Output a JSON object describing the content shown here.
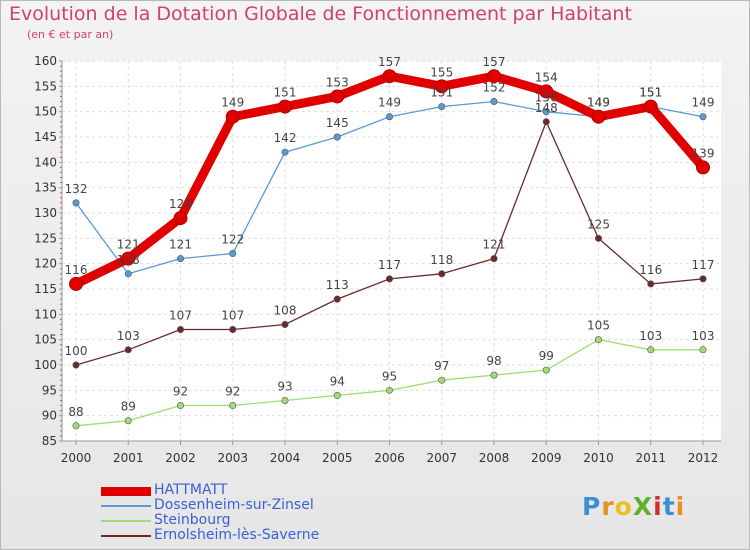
{
  "header": {
    "title": "Evolution de la Dotation Globale de Fonctionnement par Habitant",
    "subtitle": "(en € et par an)"
  },
  "logo": {
    "text": "ProXiti",
    "colors": [
      "#3b8fd4",
      "#e89020",
      "#e8c020",
      "#60b030",
      "#d03030",
      "#3b8fd4",
      "#e89020"
    ]
  },
  "chart_data": {
    "type": "line",
    "x": [
      2000,
      2001,
      2002,
      2003,
      2004,
      2005,
      2006,
      2007,
      2008,
      2009,
      2010,
      2011,
      2012
    ],
    "ylim": [
      85,
      160
    ],
    "yticks": [
      85,
      90,
      95,
      100,
      105,
      110,
      115,
      120,
      125,
      130,
      135,
      140,
      145,
      150,
      155,
      160
    ],
    "grid": true,
    "legend_position": "bottom-left",
    "series": [
      {
        "name": "HATTMATT",
        "color": "#e00000",
        "emphasis": true,
        "values": [
          116,
          121,
          129,
          149,
          151,
          153,
          157,
          155,
          157,
          154,
          149,
          151,
          139
        ]
      },
      {
        "name": "Dossenheim-sur-Zinsel",
        "color": "#5a9ad4",
        "values": [
          132,
          118,
          121,
          122,
          142,
          145,
          149,
          151,
          152,
          150,
          149,
          151,
          149
        ]
      },
      {
        "name": "Steinbourg",
        "color": "#9edc76",
        "values": [
          88,
          89,
          92,
          92,
          93,
          94,
          95,
          97,
          98,
          99,
          105,
          103,
          103
        ]
      },
      {
        "name": "Ernolsheim-lès-Saverne",
        "color": "#6b2a2a",
        "values": [
          100,
          103,
          107,
          107,
          108,
          113,
          117,
          118,
          121,
          148,
          125,
          116,
          117
        ]
      }
    ]
  }
}
